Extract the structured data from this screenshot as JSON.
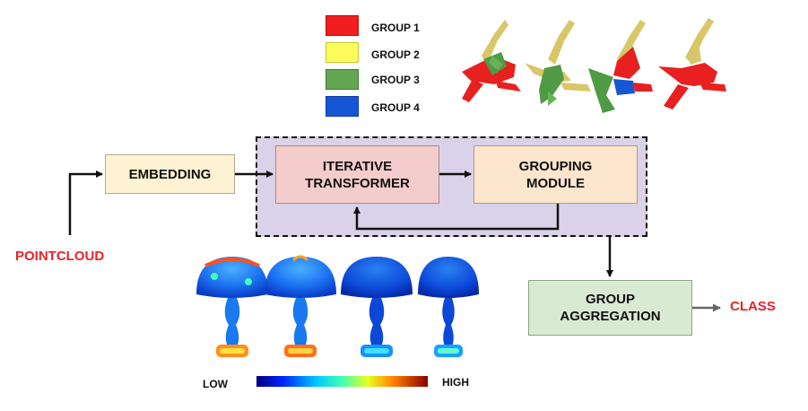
{
  "legend": {
    "items": [
      {
        "label": "GROUP 1",
        "color": "#f01e1e"
      },
      {
        "label": "GROUP 2",
        "color": "#fbfb5c"
      },
      {
        "label": "GROUP 3",
        "color": "#62a553"
      },
      {
        "label": "GROUP 4",
        "color": "#1656d4"
      }
    ]
  },
  "boxes": {
    "embedding": "EMBEDDING",
    "iterative_line1": "ITERATIVE",
    "iterative_line2": "TRANSFORMER",
    "grouping_line1": "GROUPING",
    "grouping_line2": "MODULE",
    "aggregation_line1": "GROUP",
    "aggregation_line2": "AGGREGATION"
  },
  "labels": {
    "input": "POINTCLOUD",
    "output": "CLASS",
    "scale_low": "LOW",
    "scale_high": "HIGH"
  },
  "colors": {
    "embedding_fill": "#fdf2d2",
    "iterative_fill": "#f4cccc",
    "grouping_fill": "#fce5cd",
    "aggregation_fill": "#d9ead3",
    "dashed_region_fill": "#d9d2e9",
    "accent_red": "#e8242a"
  }
}
